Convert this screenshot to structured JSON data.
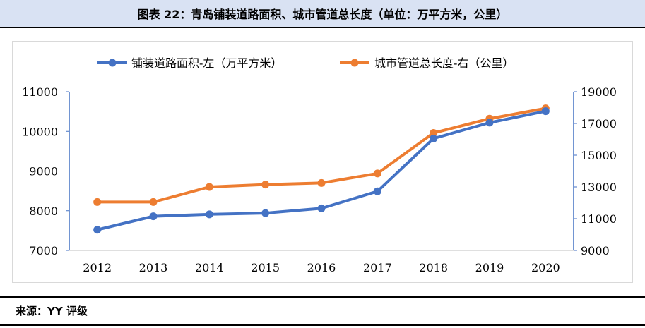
{
  "title": "图表 22：青岛铺装道路面积、城市管道总长度（单位：万平方米，公里）",
  "source": "来源：YY 评级",
  "colors": {
    "series1": "#4472c4",
    "series2": "#ed7d31",
    "axis": "#4472c4"
  },
  "chart_data": {
    "type": "line",
    "x": [
      "2012",
      "2013",
      "2014",
      "2015",
      "2016",
      "2017",
      "2018",
      "2019",
      "2020"
    ],
    "series": [
      {
        "name": "铺装道路面积-左（万平方米）",
        "axis": "left",
        "values": [
          7520,
          7860,
          7910,
          7940,
          8060,
          8490,
          9820,
          10220,
          10510
        ]
      },
      {
        "name": "城市管道总长度-右（公里）",
        "axis": "right",
        "values": [
          12050,
          12050,
          13000,
          13150,
          13250,
          13850,
          16400,
          17300,
          17950
        ]
      }
    ],
    "y_left": {
      "range": [
        7000,
        11000
      ],
      "ticks": [
        "7000",
        "8000",
        "9000",
        "10000",
        "11000"
      ]
    },
    "y_right": {
      "range": [
        9000,
        19000
      ],
      "ticks": [
        "9000",
        "11000",
        "13000",
        "15000",
        "17000",
        "19000"
      ]
    },
    "grid": false,
    "legend": "top"
  }
}
